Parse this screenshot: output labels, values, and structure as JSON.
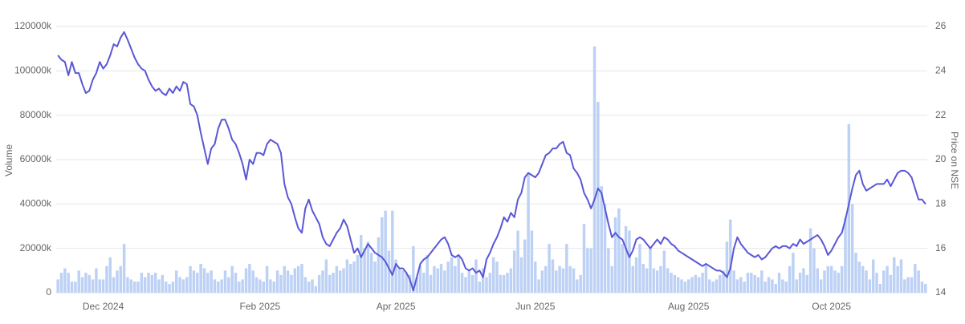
{
  "chart_data": {
    "type": "bar",
    "ylabel": "Volume",
    "y2label": "Price on NSE",
    "categories": [
      null,
      null,
      null,
      null,
      null,
      null,
      null,
      null,
      null,
      null,
      null,
      null,
      null,
      "Dec 2024",
      null,
      null,
      null,
      null,
      null,
      null,
      null,
      null,
      null,
      null,
      null,
      null,
      null,
      null,
      null,
      null,
      null,
      null,
      null,
      null,
      null,
      null,
      null,
      null,
      null,
      null,
      null,
      null,
      null,
      null,
      null,
      null,
      null,
      null,
      null,
      null,
      null,
      null,
      null,
      null,
      null,
      null,
      null,
      null,
      "Feb 2025",
      null,
      null,
      null,
      null,
      null,
      null,
      null,
      null,
      null,
      null,
      null,
      null,
      null,
      null,
      null,
      null,
      null,
      null,
      null,
      null,
      null,
      null,
      null,
      null,
      null,
      null,
      null,
      null,
      null,
      null,
      null,
      null,
      null,
      null,
      null,
      null,
      null,
      null,
      "Apr 2025",
      null,
      null,
      null,
      null,
      null,
      null,
      null,
      null,
      null,
      null,
      null,
      null,
      null,
      null,
      null,
      null,
      null,
      null,
      null,
      null,
      null,
      null,
      null,
      null,
      null,
      null,
      null,
      null,
      null,
      null,
      null,
      null,
      null,
      null,
      null,
      null,
      null,
      null,
      null,
      "Jun 2025",
      null,
      null,
      null,
      null,
      null,
      null,
      null,
      null,
      null,
      null,
      null,
      null,
      null,
      null,
      null,
      null,
      null,
      null,
      null,
      null,
      null,
      null,
      null,
      null,
      null,
      null,
      null,
      null,
      null,
      null,
      null,
      null,
      null,
      null,
      null,
      null,
      null,
      null,
      null,
      null,
      null,
      null,
      null,
      "Aug 2025",
      null,
      null,
      null,
      null,
      null,
      null,
      null,
      null,
      null,
      null,
      null,
      null,
      null,
      null,
      null,
      null,
      null,
      null,
      null,
      null,
      null,
      null,
      null,
      null,
      null,
      null,
      null,
      null,
      null,
      null,
      null,
      null,
      null,
      null,
      null,
      null,
      null,
      null,
      null,
      null,
      "Oct 2025",
      null,
      null,
      null,
      null,
      null,
      null,
      null,
      null,
      null,
      null,
      null,
      null,
      null,
      null,
      null,
      null,
      null,
      null,
      null,
      null,
      null,
      null,
      null,
      null,
      null,
      null,
      null
    ],
    "series": [
      {
        "type": "bar",
        "color": "#bdd1f5",
        "values": [
          6000000,
          9000000,
          11000000,
          9000000,
          5000000,
          5000000,
          10000000,
          7000000,
          9000000,
          8000000,
          6000000,
          11000000,
          6000000,
          6000000,
          12000000,
          16000000,
          7000000,
          10000000,
          12000000,
          22000000,
          7000000,
          6000000,
          5000000,
          5000000,
          9000000,
          7000000,
          9000000,
          8000000,
          9000000,
          6000000,
          8000000,
          5000000,
          4000000,
          5000000,
          10000000,
          7000000,
          6000000,
          7000000,
          12000000,
          10000000,
          9000000,
          13000000,
          11000000,
          9000000,
          10000000,
          6000000,
          5000000,
          6000000,
          10000000,
          7000000,
          12000000,
          9000000,
          5000000,
          6000000,
          11000000,
          13000000,
          10000000,
          7000000,
          6000000,
          5000000,
          12000000,
          6000000,
          5000000,
          10000000,
          8000000,
          12000000,
          10000000,
          8000000,
          11000000,
          12000000,
          13000000,
          7000000,
          5000000,
          6000000,
          3000000,
          8000000,
          10000000,
          15000000,
          8000000,
          9000000,
          12000000,
          10000000,
          11000000,
          15000000,
          13000000,
          14000000,
          17000000,
          26000000,
          20000000,
          23000000,
          18000000,
          14000000,
          25000000,
          34000000,
          37000000,
          19000000,
          37000000,
          15000000,
          11000000,
          10000000,
          9000000,
          8000000,
          21000000,
          7000000,
          12000000,
          9000000,
          17000000,
          8000000,
          12000000,
          11000000,
          13000000,
          10000000,
          14000000,
          16000000,
          12000000,
          17000000,
          9000000,
          7000000,
          10000000,
          8000000,
          15000000,
          5000000,
          11000000,
          7000000,
          9000000,
          16000000,
          14000000,
          8000000,
          8000000,
          9000000,
          11000000,
          19000000,
          28000000,
          16000000,
          24000000,
          54000000,
          28000000,
          14000000,
          6000000,
          10000000,
          12000000,
          22000000,
          15000000,
          10000000,
          12000000,
          11000000,
          22000000,
          12000000,
          11000000,
          6000000,
          8000000,
          31000000,
          20000000,
          20000000,
          111000000,
          86000000,
          48000000,
          40000000,
          20000000,
          12000000,
          34000000,
          38000000,
          22000000,
          30000000,
          28000000,
          12000000,
          16000000,
          22000000,
          13000000,
          11000000,
          20000000,
          11000000,
          10000000,
          12000000,
          19000000,
          11000000,
          9000000,
          8000000,
          7000000,
          6000000,
          5000000,
          6000000,
          7000000,
          8000000,
          7000000,
          9000000,
          13000000,
          6000000,
          5000000,
          6000000,
          8000000,
          10000000,
          23000000,
          33000000,
          10000000,
          6000000,
          7000000,
          5000000,
          9000000,
          9000000,
          8000000,
          7000000,
          10000000,
          5000000,
          7000000,
          6000000,
          4000000,
          9000000,
          6000000,
          5000000,
          12000000,
          18000000,
          6000000,
          9000000,
          11000000,
          8000000,
          29000000,
          20000000,
          11000000,
          6000000,
          10000000,
          12000000,
          12000000,
          10000000,
          9000000,
          12000000,
          34000000,
          76000000,
          40000000,
          18000000,
          14000000,
          12000000,
          10000000,
          6000000,
          15000000,
          9000000,
          4000000,
          10000000,
          12000000,
          8000000,
          16000000,
          12000000,
          15000000,
          6000000,
          7000000,
          7000000,
          13000000,
          10000000,
          5000000,
          4000000
        ]
      },
      {
        "type": "line",
        "axis": "y2",
        "color": "#5a57d6",
        "values": [
          24.7,
          24.5,
          24.4,
          23.8,
          24.4,
          23.9,
          23.9,
          23.4,
          23.0,
          23.1,
          23.6,
          23.9,
          24.4,
          24.1,
          24.3,
          24.7,
          25.2,
          25.1,
          25.5,
          25.75,
          25.4,
          25.0,
          24.6,
          24.3,
          24.1,
          24.0,
          23.6,
          23.3,
          23.1,
          23.2,
          23.0,
          22.9,
          23.2,
          23.0,
          23.3,
          23.1,
          23.5,
          23.4,
          22.5,
          22.4,
          22.0,
          21.2,
          20.5,
          19.8,
          20.5,
          20.7,
          21.4,
          21.8,
          21.8,
          21.4,
          20.9,
          20.7,
          20.3,
          19.8,
          19.1,
          20.0,
          19.8,
          20.3,
          20.3,
          20.2,
          20.7,
          20.9,
          20.8,
          20.7,
          20.3,
          18.9,
          18.3,
          18.0,
          17.4,
          16.9,
          16.7,
          17.8,
          18.2,
          17.7,
          17.4,
          17.1,
          16.5,
          16.2,
          16.1,
          16.4,
          16.7,
          16.9,
          17.3,
          17.0,
          16.4,
          15.8,
          16.0,
          15.6,
          15.9,
          16.2,
          16.0,
          15.8,
          15.7,
          15.6,
          15.4,
          15.1,
          14.8,
          15.3,
          15.1,
          15.1,
          14.9,
          14.6,
          14.1,
          14.7,
          15.3,
          15.5,
          15.6,
          15.8,
          16.0,
          16.2,
          16.4,
          16.5,
          16.2,
          15.7,
          15.6,
          15.7,
          15.5,
          15.1,
          15.0,
          15.1,
          14.9,
          15.0,
          14.7,
          15.5,
          15.8,
          16.2,
          16.5,
          16.9,
          17.4,
          17.2,
          17.6,
          17.4,
          18.2,
          18.5,
          19.2,
          19.4,
          19.3,
          19.2,
          19.4,
          19.8,
          20.2,
          20.3,
          20.5,
          20.5,
          20.7,
          20.8,
          20.3,
          20.2,
          19.6,
          19.4,
          19.1,
          18.5,
          18.2,
          17.8,
          18.2,
          18.7,
          18.5,
          17.8,
          17.1,
          16.5,
          16.7,
          16.5,
          16.4,
          16.0,
          15.6,
          15.9,
          16.4,
          16.5,
          16.4,
          16.2,
          16.0,
          16.2,
          16.4,
          16.2,
          16.5,
          16.4,
          16.2,
          16.1,
          15.9,
          15.8,
          15.7,
          15.6,
          15.5,
          15.4,
          15.3,
          15.2,
          15.3,
          15.2,
          15.1,
          15.0,
          15.0,
          14.9,
          14.7,
          15.1,
          16.0,
          16.5,
          16.2,
          16.0,
          15.8,
          15.7,
          15.6,
          15.7,
          15.5,
          15.6,
          15.8,
          16.0,
          16.1,
          16.0,
          16.1,
          16.1,
          16.0,
          16.2,
          16.1,
          16.4,
          16.2,
          16.3,
          16.4,
          16.5,
          16.6,
          16.4,
          16.1,
          15.7,
          15.9,
          16.2,
          16.5,
          16.7,
          17.3,
          18.0,
          18.7,
          19.3,
          19.5,
          18.9,
          18.6,
          18.7,
          18.8,
          18.9,
          18.9,
          18.9,
          19.1,
          18.8,
          19.1,
          19.4,
          19.5,
          19.5,
          19.4,
          19.2,
          18.7,
          18.2,
          18.2,
          18.0
        ]
      }
    ],
    "ylim": [
      0,
      120000000
    ],
    "yticks": [
      0,
      {
        "value": 20000000,
        "label": "20000k"
      },
      {
        "value": 40000000,
        "label": "40000k"
      },
      {
        "value": 60000000,
        "label": "60000k"
      },
      {
        "value": 80000000,
        "label": "80000k"
      },
      {
        "value": 100000000,
        "label": "100000k"
      },
      {
        "value": 120000000,
        "label": "120000k"
      }
    ],
    "y2lim": [
      14,
      26
    ],
    "y2ticks": [
      14,
      16,
      18,
      20,
      22,
      24,
      26
    ],
    "grid": true
  }
}
